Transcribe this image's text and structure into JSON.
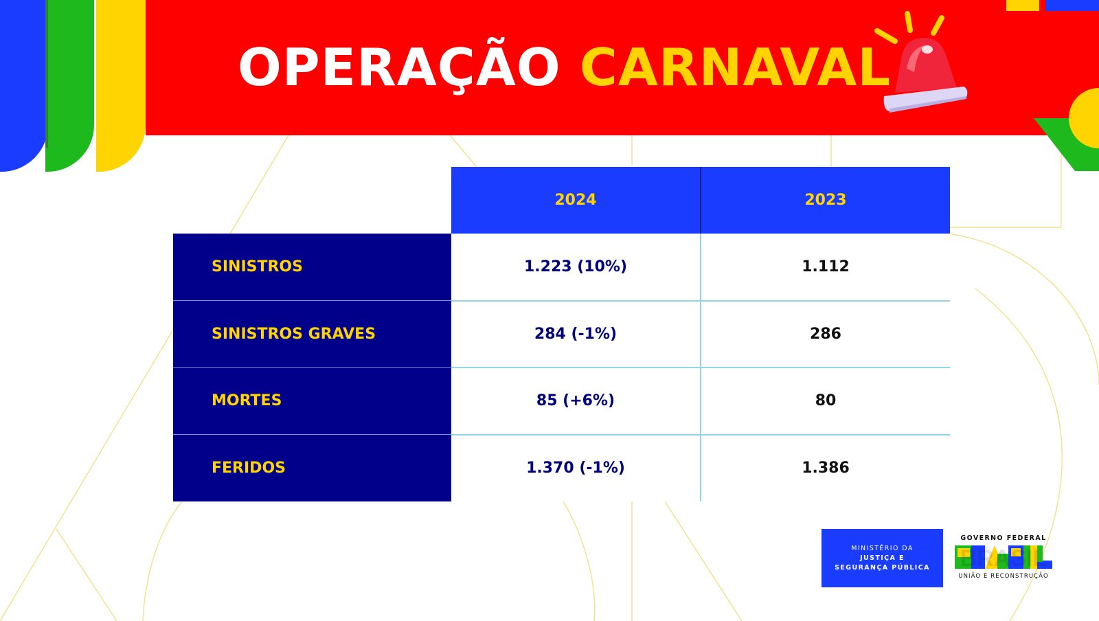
{
  "title": {
    "part1": "OPERAÇÃO",
    "part2": "CARNAVAL"
  },
  "table": {
    "headers": [
      "2024",
      "2023"
    ],
    "rows": [
      {
        "label": "SINISTROS",
        "y2024": "1.223 (10%)",
        "y2023": "1.112"
      },
      {
        "label": "SINISTROS GRAVES",
        "y2024": "284 (-1%)",
        "y2023": "286"
      },
      {
        "label": "MORTES",
        "y2024": "85 (+6%)",
        "y2023": "80"
      },
      {
        "label": "FERIDOS",
        "y2024": "1.370 (-1%)",
        "y2023": "1.386"
      }
    ]
  },
  "logos": {
    "ministry_line1": "MINISTÉRIO DA",
    "ministry_line2": "JUSTIÇA E",
    "ministry_line3": "SEGURANÇA PÚBLICA",
    "gov_top": "GOVERNO FEDERAL",
    "gov_word": "BRASIL",
    "gov_bottom": "UNIÃO E RECONSTRUÇÃO"
  },
  "colors": {
    "header_red": "#ff0000",
    "title_yellow": "#ffd400",
    "header_blue": "#1a3cff",
    "label_navy": "#00008b",
    "divider_cyan": "#7fd3e6",
    "brand_green": "#1db91d"
  },
  "icons": [
    "siren-icon"
  ]
}
